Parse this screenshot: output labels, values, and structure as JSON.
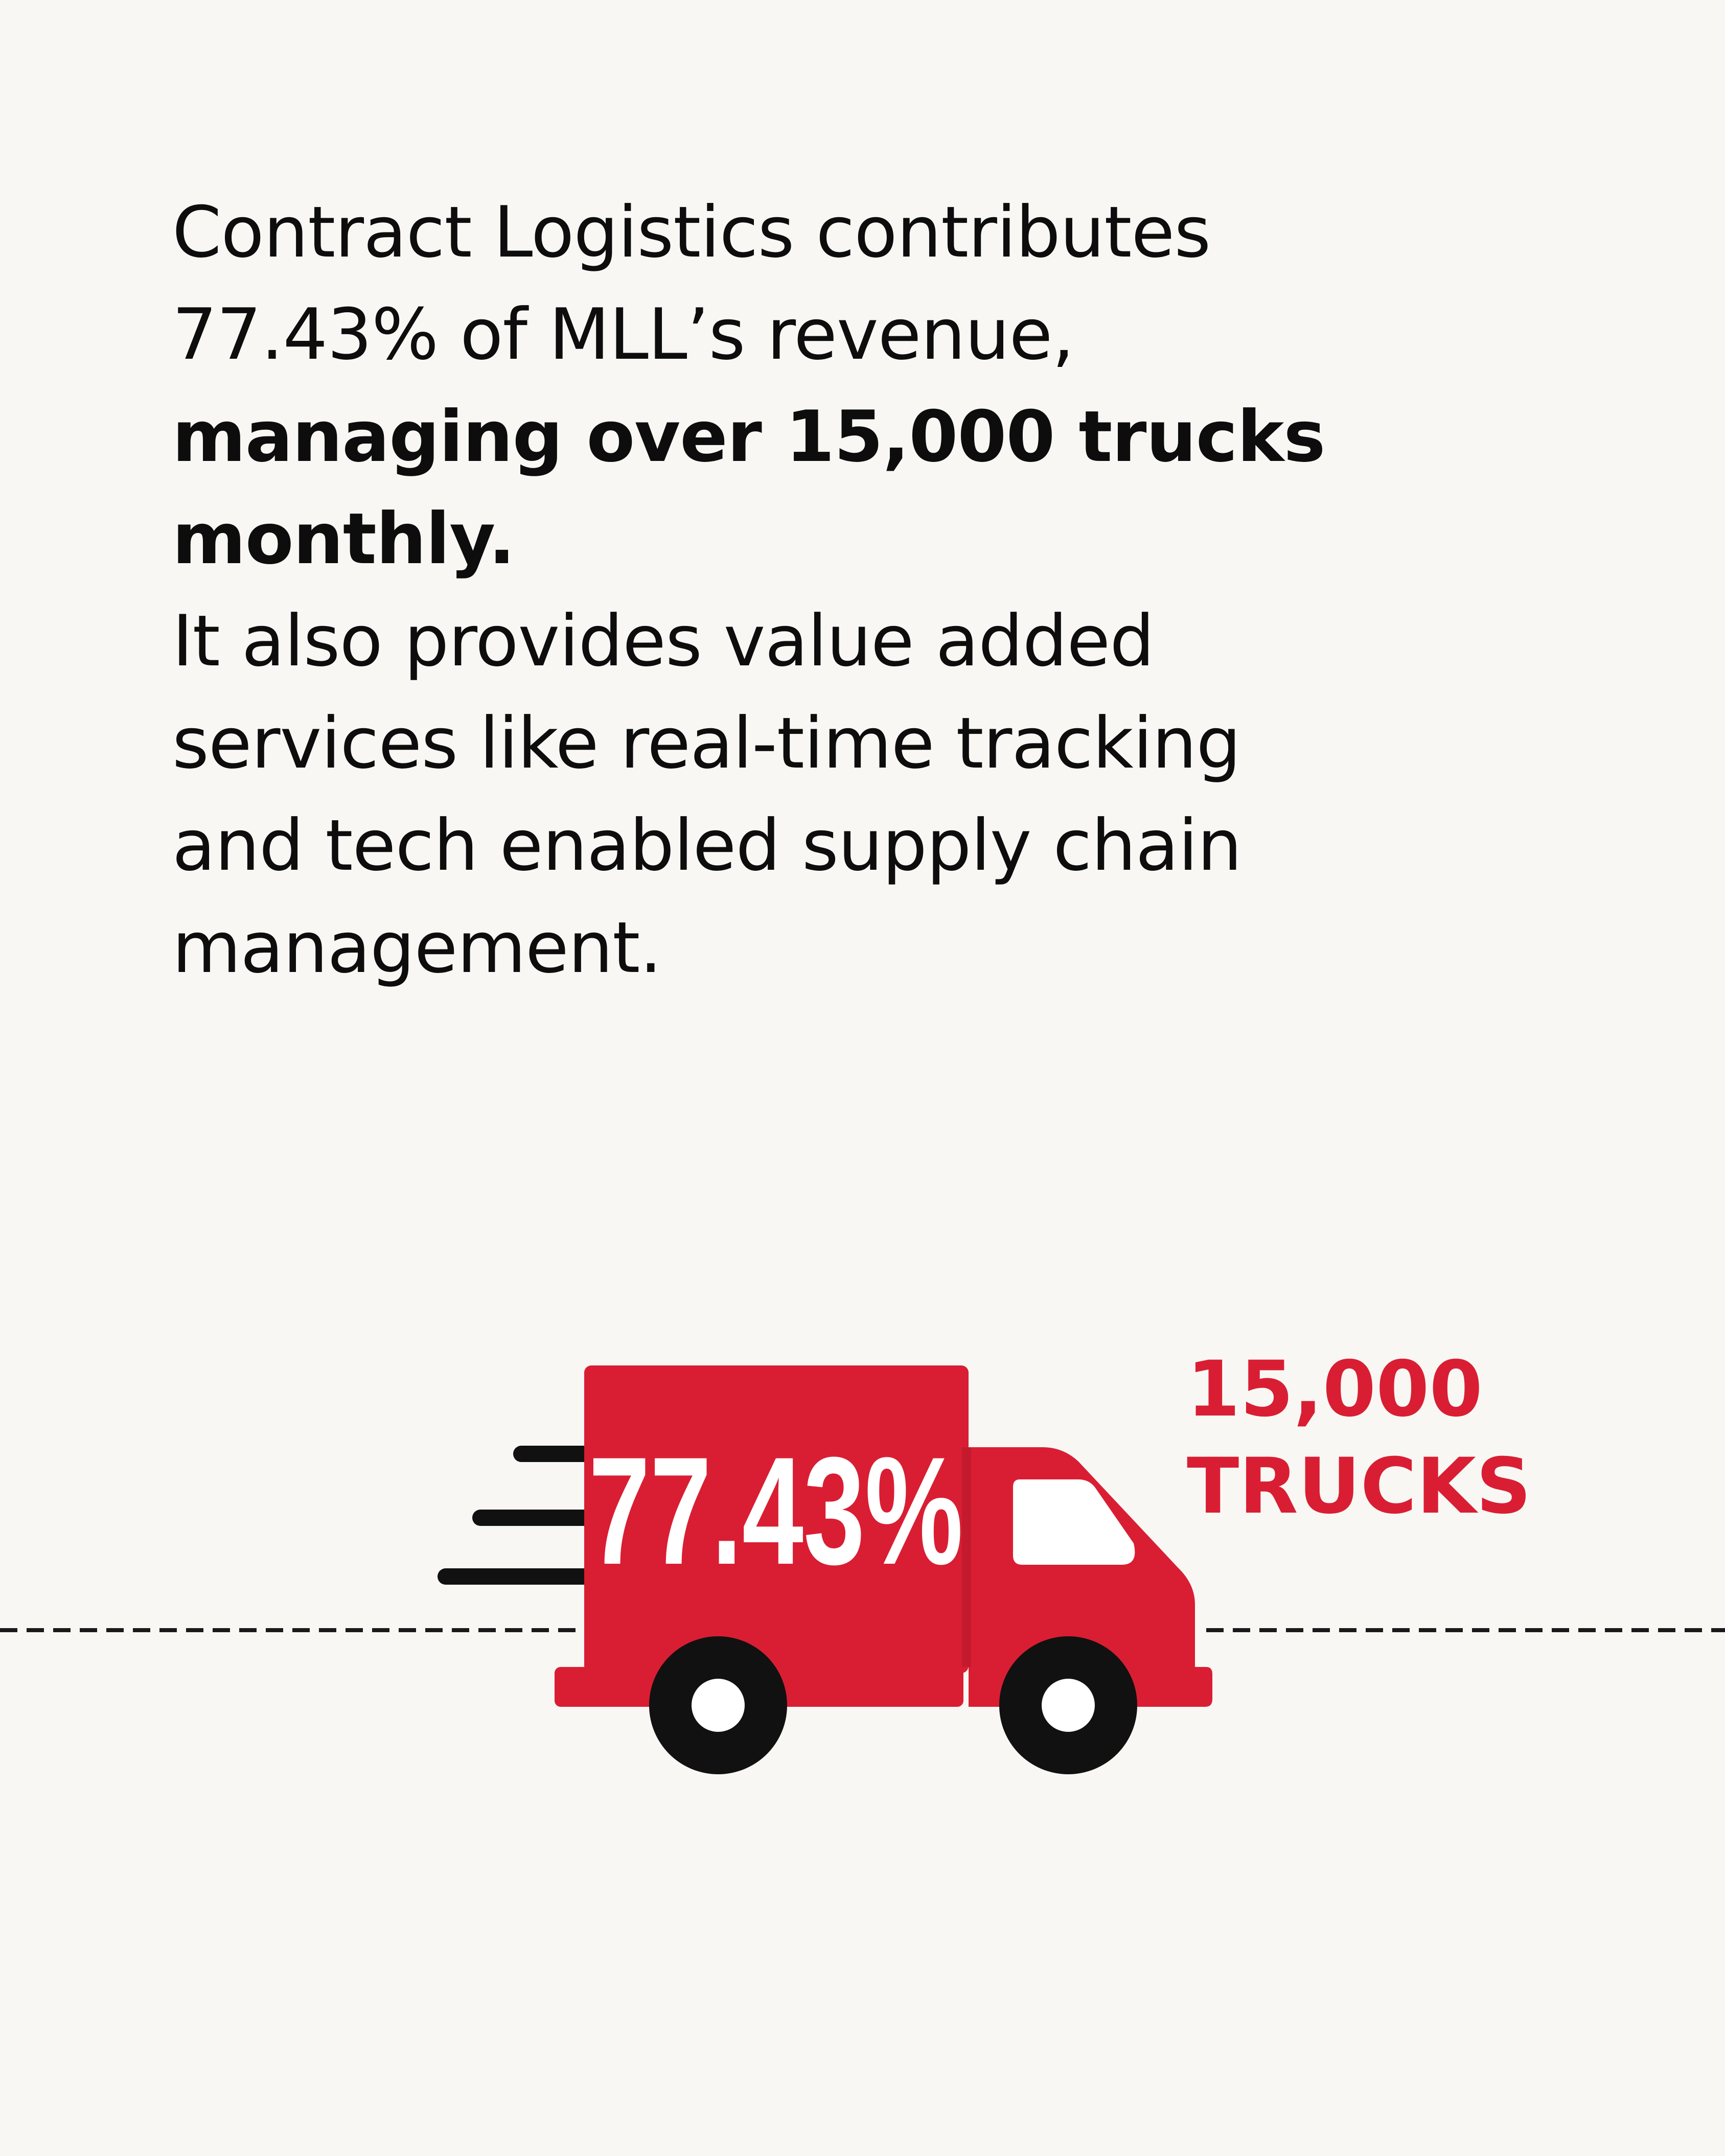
{
  "text": {
    "line1": "Contract Logistics contributes",
    "line2": "77.43% of MLL’s revenue,",
    "bold_line1": "managing over 15,000 trucks",
    "bold_line2": "monthly.",
    "line3": "It also provides value added",
    "line4": "services like real-time tracking",
    "line5": "and tech enabled supply chain",
    "line6": "management."
  },
  "truck": {
    "percentage": "77.43%",
    "count_number": "15,000",
    "count_unit": "TRUCKS"
  },
  "colors": {
    "truck_red": "#d91e33",
    "wheel": "#111111",
    "text": "#0d0d0d",
    "background": "#f8f7f4"
  },
  "icons": [
    "delivery-truck-icon",
    "speed-lines-icon"
  ]
}
